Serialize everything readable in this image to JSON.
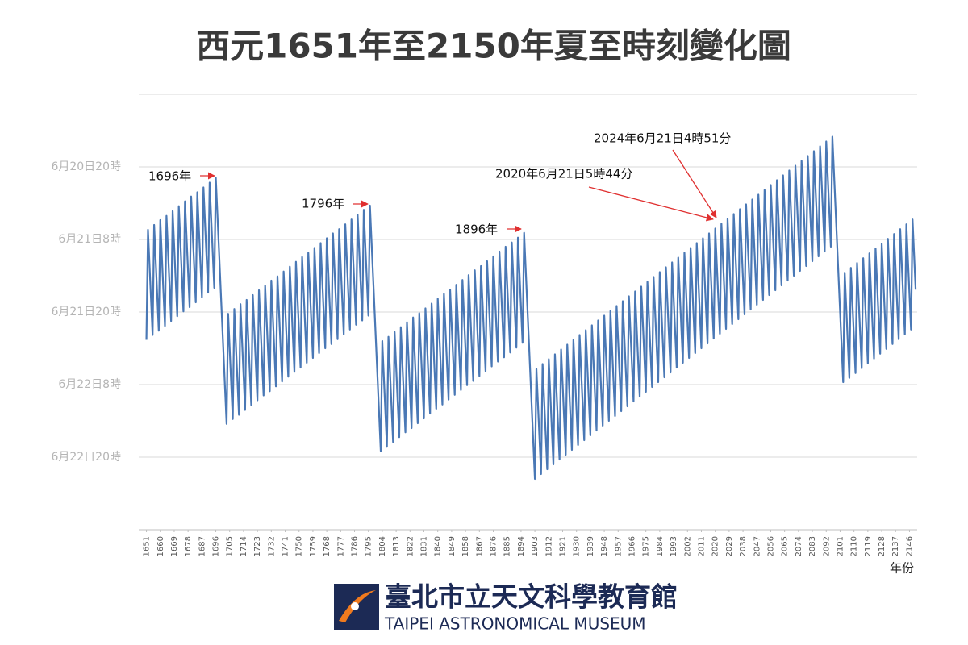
{
  "chart_data": {
    "type": "line",
    "title": "西元1651年至2150年夏至時刻變化圖",
    "x_label": "年份",
    "color": "#4a78b5",
    "grid": true,
    "xlim": [
      1646,
      2151
    ],
    "ylim": [
      80,
      8
    ],
    "yticks": [
      {
        "value": 20,
        "label": "6月20日20時"
      },
      {
        "value": 32,
        "label": "6月21日8時"
      },
      {
        "value": 44,
        "label": "6月21日20時"
      },
      {
        "value": 56,
        "label": "6月22日8時"
      },
      {
        "value": 68,
        "label": "6月22日20時"
      }
    ],
    "xticks": [
      1651,
      1660,
      1669,
      1678,
      1687,
      1696,
      1705,
      1714,
      1723,
      1732,
      1741,
      1750,
      1759,
      1768,
      1777,
      1786,
      1795,
      1804,
      1813,
      1822,
      1831,
      1840,
      1849,
      1858,
      1867,
      1876,
      1885,
      1894,
      1903,
      1912,
      1921,
      1930,
      1939,
      1948,
      1957,
      1966,
      1975,
      1984,
      1993,
      2002,
      2011,
      2020,
      2029,
      2038,
      2047,
      2056,
      2065,
      2074,
      2083,
      2092,
      2101,
      2110,
      2119,
      2128,
      2137,
      2146
    ],
    "annotations": [
      {
        "text": "1696年"
      },
      {
        "text": "1796年"
      },
      {
        "text": "1896年"
      },
      {
        "text": "2020年6月21日5時44分"
      },
      {
        "text": "2024年6月21日4時51分"
      }
    ],
    "x": [
      1651,
      1652,
      1653,
      1654,
      1655,
      1656,
      1657,
      1658,
      1659,
      1660,
      1661,
      1662,
      1663,
      1664,
      1665,
      1666,
      1667,
      1668,
      1669,
      1670,
      1671,
      1672,
      1673,
      1674,
      1675,
      1676,
      1677,
      1678,
      1679,
      1680,
      1681,
      1682,
      1683,
      1684,
      1685,
      1686,
      1687,
      1688,
      1689,
      1690,
      1691,
      1692,
      1693,
      1694,
      1695,
      1696,
      1697,
      1698,
      1699,
      1700,
      1701,
      1702,
      1703,
      1704,
      1705,
      1706,
      1707,
      1708,
      1709,
      1710,
      1711,
      1712,
      1713,
      1714,
      1715,
      1716,
      1717,
      1718,
      1719,
      1720,
      1721,
      1722,
      1723,
      1724,
      1725,
      1726,
      1727,
      1728,
      1729,
      1730,
      1731,
      1732,
      1733,
      1734,
      1735,
      1736,
      1737,
      1738,
      1739,
      1740,
      1741,
      1742,
      1743,
      1744,
      1745,
      1746,
      1747,
      1748,
      1749,
      1750,
      1751,
      1752,
      1753,
      1754,
      1755,
      1756,
      1757,
      1758,
      1759,
      1760,
      1761,
      1762,
      1763,
      1764,
      1765,
      1766,
      1767,
      1768,
      1769,
      1770,
      1771,
      1772,
      1773,
      1774,
      1775,
      1776,
      1777,
      1778,
      1779,
      1780,
      1781,
      1782,
      1783,
      1784,
      1785,
      1786,
      1787,
      1788,
      1789,
      1790,
      1791,
      1792,
      1793,
      1794,
      1795,
      1796,
      1797,
      1798,
      1799,
      1800,
      1801,
      1802,
      1803,
      1804,
      1805,
      1806,
      1807,
      1808,
      1809,
      1810,
      1811,
      1812,
      1813,
      1814,
      1815,
      1816,
      1817,
      1818,
      1819,
      1820,
      1821,
      1822,
      1823,
      1824,
      1825,
      1826,
      1827,
      1828,
      1829,
      1830,
      1831,
      1832,
      1833,
      1834,
      1835,
      1836,
      1837,
      1838,
      1839,
      1840,
      1841,
      1842,
      1843,
      1844,
      1845,
      1846,
      1847,
      1848,
      1849,
      1850,
      1851,
      1852,
      1853,
      1854,
      1855,
      1856,
      1857,
      1858,
      1859,
      1860,
      1861,
      1862,
      1863,
      1864,
      1865,
      1866,
      1867,
      1868,
      1869,
      1870,
      1871,
      1872,
      1873,
      1874,
      1875,
      1876,
      1877,
      1878,
      1879,
      1880,
      1881,
      1882,
      1883,
      1884,
      1885,
      1886,
      1887,
      1888,
      1889,
      1890,
      1891,
      1892,
      1893,
      1894,
      1895,
      1896,
      1897,
      1898,
      1899,
      1900,
      1901,
      1902,
      1903,
      1904,
      1905,
      1906,
      1907,
      1908,
      1909,
      1910,
      1911,
      1912,
      1913,
      1914,
      1915,
      1916,
      1917,
      1918,
      1919,
      1920,
      1921,
      1922,
      1923,
      1924,
      1925,
      1926,
      1927,
      1928,
      1929,
      1930,
      1931,
      1932,
      1933,
      1934,
      1935,
      1936,
      1937,
      1938,
      1939,
      1940,
      1941,
      1942,
      1943,
      1944,
      1945,
      1946,
      1947,
      1948,
      1949,
      1950,
      1951,
      1952,
      1953,
      1954,
      1955,
      1956,
      1957,
      1958,
      1959,
      1960,
      1961,
      1962,
      1963,
      1964,
      1965,
      1966,
      1967,
      1968,
      1969,
      1970,
      1971,
      1972,
      1973,
      1974,
      1975,
      1976,
      1977,
      1978,
      1979,
      1980,
      1981,
      1982,
      1983,
      1984,
      1985,
      1986,
      1987,
      1988,
      1989,
      1990,
      1991,
      1992,
      1993,
      1994,
      1995,
      1996,
      1997,
      1998,
      1999,
      2000,
      2001,
      2002,
      2003,
      2004,
      2005,
      2006,
      2007,
      2008,
      2009,
      2010,
      2011,
      2012,
      2013,
      2014,
      2015,
      2016,
      2017,
      2018,
      2019,
      2020,
      2021,
      2022,
      2023,
      2024,
      2025,
      2026,
      2027,
      2028,
      2029,
      2030,
      2031,
      2032,
      2033,
      2034,
      2035,
      2036,
      2037,
      2038,
      2039,
      2040,
      2041,
      2042,
      2043,
      2044,
      2045,
      2046,
      2047,
      2048,
      2049,
      2050,
      2051,
      2052,
      2053,
      2054,
      2055,
      2056,
      2057,
      2058,
      2059,
      2060,
      2061,
      2062,
      2063,
      2064,
      2065,
      2066,
      2067,
      2068,
      2069,
      2070,
      2071,
      2072,
      2073,
      2074,
      2075,
      2076,
      2077,
      2078,
      2079,
      2080,
      2081,
      2082,
      2083,
      2084,
      2085,
      2086,
      2087,
      2088,
      2089,
      2090,
      2091,
      2092,
      2093,
      2094,
      2095,
      2096,
      2097,
      2098,
      2099,
      2100,
      2101,
      2102,
      2103,
      2104,
      2105,
      2106,
      2107,
      2108,
      2109,
      2110,
      2111,
      2112,
      2113,
      2114,
      2115,
      2116,
      2117,
      2118,
      2119,
      2120,
      2121,
      2122,
      2123,
      2124,
      2125,
      2126,
      2127,
      2128,
      2129,
      2130,
      2131,
      2132,
      2133,
      2134,
      2135,
      2136,
      2137,
      2138,
      2139,
      2140,
      2141,
      2142,
      2143,
      2144,
      2145,
      2146,
      2147,
      2148,
      2149,
      2150
    ],
    "values": [
      48.6,
      30.4,
      36.2,
      42.0,
      47.8,
      29.6,
      35.4,
      41.2,
      47.1,
      28.8,
      34.7,
      40.5,
      46.3,
      28.1,
      33.9,
      39.7,
      45.5,
      27.3,
      33.1,
      38.9,
      44.7,
      26.5,
      32.3,
      38.1,
      43.9,
      25.7,
      31.5,
      37.3,
      43.2,
      24.9,
      30.8,
      36.6,
      42.4,
      24.2,
      30.0,
      35.8,
      41.6,
      23.4,
      29.2,
      35.0,
      40.8,
      22.6,
      28.4,
      34.2,
      40.0,
      21.8,
      27.6,
      33.4,
      39.3,
      45.1,
      50.9,
      56.7,
      62.5,
      44.3,
      50.1,
      55.9,
      61.7,
      43.5,
      49.3,
      55.1,
      61.0,
      42.7,
      48.6,
      54.4,
      60.2,
      42.0,
      47.8,
      53.6,
      59.4,
      41.2,
      47.0,
      52.8,
      58.6,
      40.4,
      46.2,
      52.0,
      57.8,
      39.6,
      45.4,
      51.2,
      57.1,
      38.8,
      44.7,
      50.5,
      56.3,
      38.1,
      43.9,
      49.7,
      55.5,
      37.3,
      43.1,
      48.9,
      54.7,
      36.5,
      42.3,
      48.1,
      53.9,
      35.7,
      41.5,
      47.3,
      53.2,
      34.9,
      40.8,
      46.6,
      52.4,
      34.2,
      40.0,
      45.8,
      51.6,
      33.4,
      39.2,
      45.0,
      50.8,
      32.6,
      38.4,
      44.2,
      50.0,
      31.8,
      37.6,
      43.4,
      49.3,
      31.0,
      36.9,
      42.7,
      48.5,
      30.3,
      36.1,
      41.9,
      47.7,
      29.5,
      35.3,
      41.1,
      46.9,
      28.7,
      34.5,
      40.3,
      46.1,
      27.9,
      33.7,
      39.5,
      45.4,
      27.1,
      33.0,
      38.8,
      44.6,
      26.4,
      32.2,
      38.0,
      43.8,
      49.6,
      55.4,
      61.2,
      67.0,
      48.8,
      54.7,
      60.5,
      66.3,
      48.1,
      53.9,
      59.7,
      65.5,
      47.3,
      53.1,
      58.9,
      64.7,
      46.5,
      52.3,
      58.1,
      63.9,
      45.7,
      51.5,
      57.3,
      63.2,
      44.9,
      50.8,
      56.6,
      62.4,
      44.2,
      50.0,
      55.8,
      61.6,
      43.4,
      49.2,
      55.0,
      60.8,
      42.6,
      48.4,
      54.2,
      60.0,
      41.8,
      47.6,
      53.4,
      59.3,
      41.0,
      46.9,
      52.7,
      58.5,
      40.3,
      46.1,
      51.9,
      57.7,
      39.5,
      45.3,
      51.1,
      56.9,
      38.7,
      44.5,
      50.3,
      56.1,
      37.9,
      43.7,
      49.5,
      55.4,
      37.1,
      43.0,
      48.8,
      54.6,
      36.4,
      42.2,
      48.0,
      53.8,
      35.6,
      41.4,
      47.2,
      53.0,
      34.8,
      40.6,
      46.4,
      52.2,
      34.0,
      39.8,
      45.6,
      51.5,
      33.2,
      39.1,
      44.9,
      50.7,
      32.5,
      38.3,
      44.1,
      49.9,
      31.7,
      37.5,
      43.3,
      49.1,
      30.9,
      36.7,
      42.5,
      48.3,
      54.1,
      60.0,
      65.8,
      71.6,
      53.4,
      59.2,
      65.0,
      70.8,
      52.6,
      58.4,
      64.2,
      70.0,
      51.8,
      57.6,
      63.4,
      69.2,
      51.0,
      56.8,
      62.6,
      68.4,
      50.2,
      56.0,
      61.8,
      67.6,
      49.4,
      55.2,
      61.0,
      66.8,
      48.6,
      54.4,
      60.2,
      66.0,
      47.8,
      53.6,
      59.4,
      65.2,
      47.0,
      52.8,
      58.6,
      64.4,
      46.2,
      52.0,
      57.8,
      63.6,
      45.4,
      51.2,
      57.0,
      62.8,
      44.6,
      50.4,
      56.2,
      62.0,
      43.8,
      49.6,
      55.4,
      61.2,
      43.0,
      48.8,
      54.6,
      60.4,
      42.2,
      48.0,
      53.8,
      59.6,
      41.4,
      47.2,
      53.0,
      58.8,
      40.6,
      46.4,
      52.2,
      58.0,
      39.8,
      45.6,
      51.4,
      57.2,
      39.0,
      44.8,
      50.6,
      56.4,
      38.2,
      44.0,
      49.8,
      55.6,
      37.4,
      43.2,
      49.0,
      54.8,
      36.6,
      42.4,
      48.2,
      54.0,
      35.8,
      41.6,
      47.4,
      53.2,
      35.0,
      40.8,
      46.6,
      52.4,
      34.2,
      40.0,
      45.8,
      51.6,
      33.4,
      39.2,
      45.0,
      50.8,
      32.6,
      38.4,
      44.2,
      50.0,
      31.8,
      37.6,
      43.4,
      49.2,
      31.0,
      36.8,
      42.6,
      48.4,
      30.2,
      36.0,
      41.8,
      47.6,
      29.4,
      35.2,
      41.0,
      46.8,
      28.6,
      34.4,
      40.2,
      46.0,
      27.8,
      33.6,
      39.4,
      45.2,
      27.0,
      32.8,
      38.6,
      44.4,
      26.2,
      32.0,
      37.8,
      43.6,
      25.4,
      31.2,
      37.0,
      42.8,
      24.6,
      30.4,
      36.2,
      42.0,
      23.8,
      29.6,
      35.4,
      41.2,
      23.0,
      28.8,
      34.6,
      40.4,
      22.2,
      28.0,
      33.8,
      39.6,
      21.4,
      27.2,
      33.0,
      38.8,
      20.6,
      26.4,
      32.2,
      38.0,
      19.8,
      25.6,
      31.4,
      37.2,
      19.0,
      24.8,
      30.6,
      36.4,
      18.2,
      24.0,
      29.8,
      35.6,
      17.4,
      23.2,
      29.0,
      34.8,
      16.6,
      22.4,
      28.2,
      34.0,
      15.8,
      21.6,
      27.4,
      33.2,
      15.0,
      20.8,
      26.6,
      32.4,
      38.2,
      44.0,
      49.8,
      55.6,
      37.5,
      43.3,
      49.1,
      54.9,
      36.7,
      42.5,
      48.3,
      54.1,
      35.9,
      41.7,
      47.5,
      53.3,
      35.1,
      40.9,
      46.7,
      52.5,
      34.3,
      40.1,
      45.9,
      51.7,
      33.5,
      39.3,
      45.1,
      50.9,
      32.7,
      38.5,
      44.3,
      50.1,
      31.9,
      37.7,
      43.5,
      49.3,
      31.1,
      36.9,
      42.7,
      48.5,
      30.3,
      36.1,
      41.9,
      47.7,
      29.5,
      35.3,
      41.1,
      46.9,
      28.7,
      34.5,
      40.3
    ]
  },
  "logo": {
    "name": "臺北市立天文科學教育館",
    "name_en": "TAIPEI ASTRONOMICAL MUSEUM"
  }
}
